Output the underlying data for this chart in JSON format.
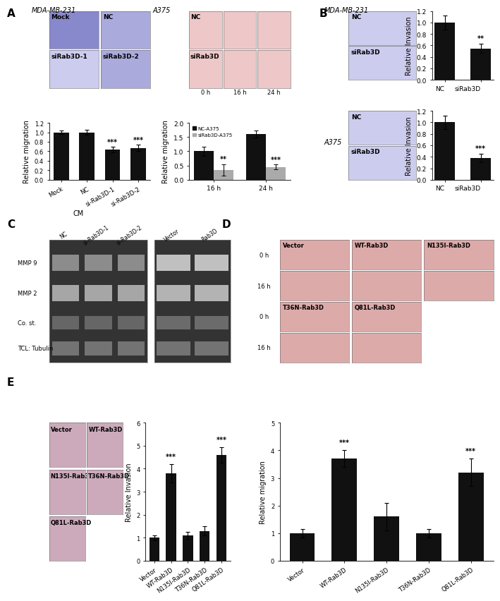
{
  "panel_A_bar1": {
    "categories": [
      "Mock",
      "NC",
      "si-Rab3D-1",
      "si-Rab3D-2"
    ],
    "values": [
      1.0,
      1.0,
      0.63,
      0.67
    ],
    "errors": [
      0.04,
      0.05,
      0.06,
      0.07
    ],
    "sig": [
      "",
      "",
      "***",
      "***"
    ],
    "ylabel": "Relative migration",
    "ylim": [
      0,
      1.2
    ],
    "yticks": [
      0.0,
      0.2,
      0.4,
      0.6,
      0.8,
      1.0,
      1.2
    ]
  },
  "panel_A_bar2": {
    "group_labels": [
      "16 h",
      "24 h"
    ],
    "nc_values": [
      1.0,
      1.6
    ],
    "si_values": [
      0.35,
      0.45
    ],
    "nc_errors": [
      0.15,
      0.12
    ],
    "si_errors": [
      0.2,
      0.08
    ],
    "sig_nc": [
      "",
      ""
    ],
    "sig_si": [
      "**",
      "***"
    ],
    "ylabel": "Relative migration",
    "ylim": [
      0,
      2.0
    ],
    "yticks": [
      0.0,
      0.5,
      1.0,
      1.5,
      2.0
    ],
    "legend": [
      "NC-A375",
      "siRab3D-A375"
    ],
    "colors": [
      "#111111",
      "#aaaaaa"
    ]
  },
  "panel_B_bar1": {
    "categories": [
      "NC",
      "siRab3D"
    ],
    "values": [
      1.0,
      0.55
    ],
    "errors": [
      0.12,
      0.08
    ],
    "sig": [
      "",
      "**"
    ],
    "ylabel": "Relative Invasion",
    "ylim": [
      0,
      1.2
    ],
    "yticks": [
      0.0,
      0.2,
      0.4,
      0.6,
      0.8,
      1.0,
      1.2
    ],
    "title": "MDA-MB-231"
  },
  "panel_B_bar2": {
    "categories": [
      "NC",
      "siRab3D"
    ],
    "values": [
      1.0,
      0.38
    ],
    "errors": [
      0.12,
      0.07
    ],
    "sig": [
      "",
      "***"
    ],
    "ylabel": "Relative Invasion",
    "ylim": [
      0,
      1.2
    ],
    "yticks": [
      0.0,
      0.2,
      0.4,
      0.6,
      0.8,
      1.0,
      1.2
    ],
    "title": "A375"
  },
  "panel_E_bar": {
    "categories": [
      "Vector",
      "WT-Rab3D",
      "N135I-Rab3D",
      "T36N-Rab3D",
      "Q81L-Rab3D"
    ],
    "values": [
      1.0,
      3.8,
      1.1,
      1.3,
      4.6
    ],
    "errors": [
      0.1,
      0.4,
      0.15,
      0.2,
      0.35
    ],
    "sig": [
      "",
      "***",
      "",
      "",
      "***"
    ],
    "ylabel": "Relative Invasion",
    "ylim": [
      0,
      6
    ],
    "yticks": [
      0,
      1,
      2,
      3,
      4,
      5,
      6
    ]
  },
  "panel_D_bar": {
    "categories": [
      "Vector",
      "WT-Rab3D",
      "N135I-Rab3D",
      "T36N-Rab3D",
      "Q81L-Rab3D"
    ],
    "values": [
      1.0,
      3.7,
      1.6,
      1.0,
      3.2
    ],
    "errors": [
      0.15,
      0.3,
      0.5,
      0.15,
      0.5
    ],
    "sig": [
      "",
      "***",
      "",
      "",
      "***"
    ],
    "ylabel": "Relative migration",
    "ylim": [
      0,
      5
    ],
    "yticks": [
      0,
      1,
      2,
      3,
      4,
      5
    ]
  },
  "bg_color": "#ffffff",
  "bar_color_black": "#111111",
  "bar_color_gray": "#aaaaaa",
  "font_size_panel_label": 11,
  "font_size_tick": 7,
  "font_size_axis": 7.5,
  "font_size_sig": 7,
  "img_color_blue_dark": "#8888cc",
  "img_color_blue_mid": "#aaaadd",
  "img_color_blue_light": "#ccccee",
  "img_color_pink_dark": "#cc9999",
  "img_color_pink_mid": "#ddaaaa",
  "img_color_pink_light": "#eec8c8",
  "img_color_purple": "#ccaabb",
  "img_color_wb_dark": "#333333",
  "img_color_wb_band": "#888888",
  "img_color_wb_light": "#555555"
}
